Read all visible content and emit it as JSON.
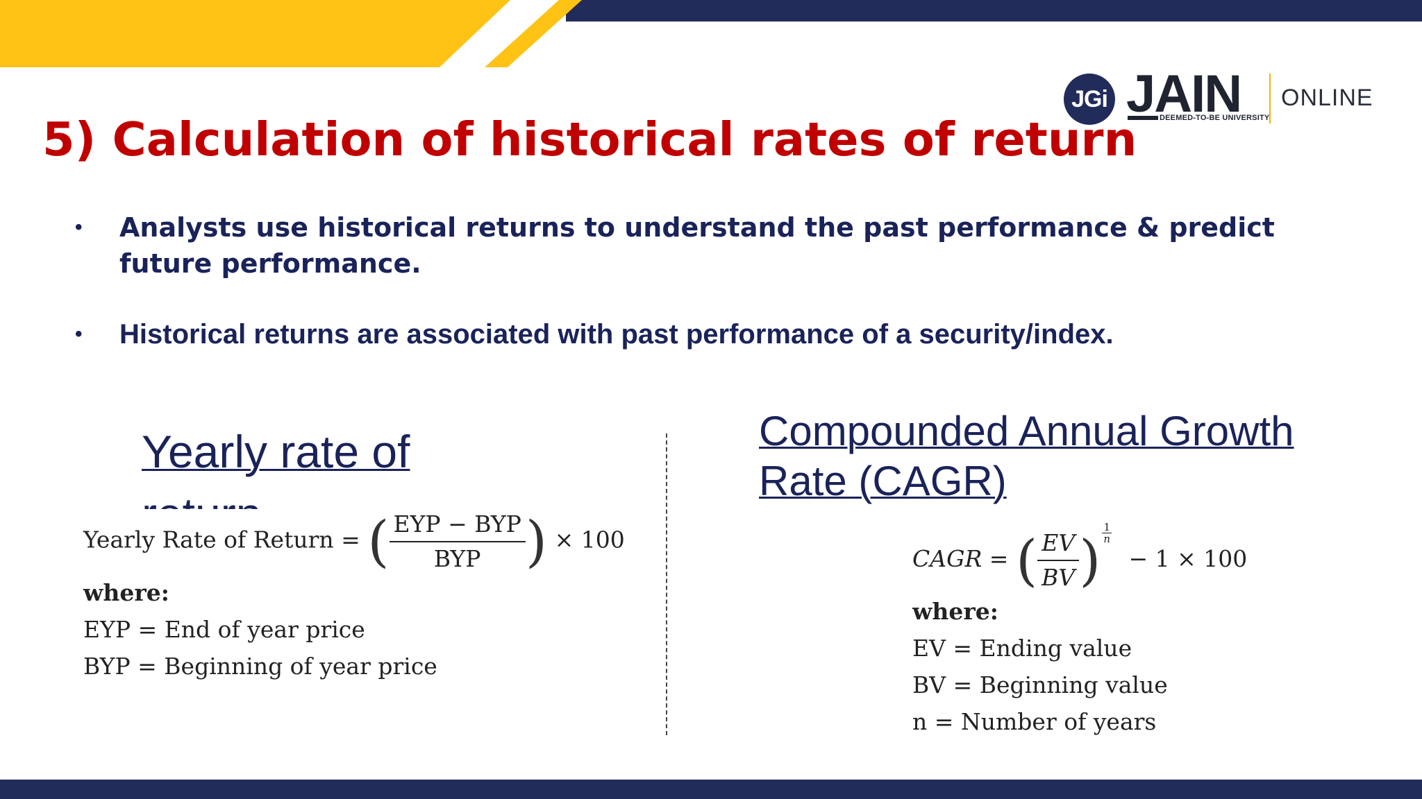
{
  "header": {
    "title": "5) Calculation of historical rates of return"
  },
  "logo": {
    "mark": "JGi",
    "word": "JAIN",
    "sub": "DEEMED-TO-BE UNIVERSITY",
    "suffix": "ONLINE"
  },
  "bullets": [
    "Analysts use historical returns to understand the past performance & predict future performance.",
    "Historical returns are associated with past performance of a security/index."
  ],
  "left": {
    "heading": "Yearly rate of return",
    "formula": {
      "lhs": "Yearly Rate of Return =",
      "numerator": "EYP − BYP",
      "denominator": "BYP",
      "tail": "× 100"
    },
    "where": "where:",
    "definitions": [
      "EYP = End of year price",
      "BYP = Beginning of year price"
    ]
  },
  "right": {
    "heading": "Compounded Annual Growth Rate (CAGR)",
    "formula": {
      "lhs": "CAGR =",
      "numerator": "EV",
      "denominator": "BV",
      "exp_num": "1",
      "exp_den": "n",
      "tail": "− 1 × 100"
    },
    "where": "where:",
    "definitions": [
      "EV = Ending value",
      "BV = Beginning value",
      "n = Number of years"
    ]
  },
  "colors": {
    "navy": "#222c5a",
    "yellow": "#fec314",
    "title_red": "#c00000",
    "text_navy": "#1a2359"
  }
}
